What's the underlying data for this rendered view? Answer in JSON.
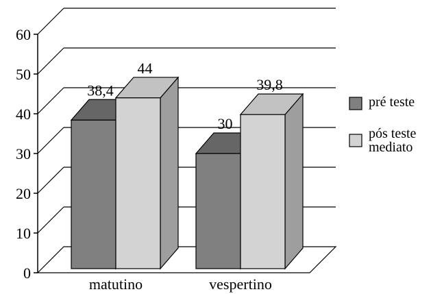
{
  "chart_data": {
    "type": "bar",
    "categories": [
      "matutino",
      "vespertino"
    ],
    "series": [
      {
        "name": "pré teste",
        "values": [
          38.4,
          30
        ],
        "labels": [
          "38,4",
          "30"
        ],
        "color": "#808080"
      },
      {
        "name": "pós teste mediato",
        "name_lines": [
          "pós teste",
          "mediato"
        ],
        "values": [
          44,
          39.8
        ],
        "labels": [
          "44",
          "39,8"
        ],
        "color": "#d3d3d3"
      }
    ],
    "y_ticks": [
      0,
      10,
      20,
      30,
      40,
      50,
      60
    ],
    "y_tick_labels": [
      "0",
      "10",
      "20",
      "30",
      "40",
      "50",
      "60"
    ],
    "ylim": [
      0,
      60
    ],
    "grid": true,
    "three_d": true,
    "legend_position": "right"
  }
}
